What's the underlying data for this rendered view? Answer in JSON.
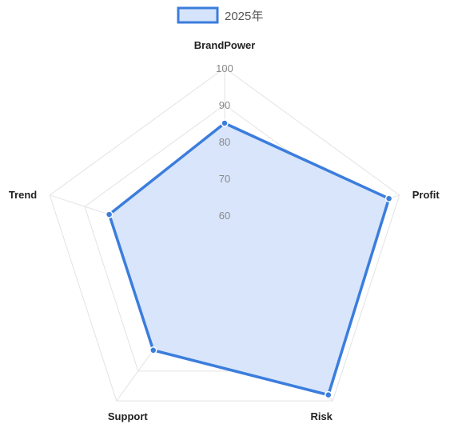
{
  "chart_data": {
    "type": "radar",
    "axes": [
      "BrandPower",
      "Profit",
      "Risk",
      "Support",
      "Trend"
    ],
    "series": [
      {
        "name": "2025年",
        "values": [
          85,
          97,
          98,
          83,
          83
        ],
        "color": "#3b7ddd",
        "fill": "#d6e4fb"
      }
    ],
    "r_min": 50,
    "r_max": 100,
    "ticks": [
      60,
      70,
      80,
      90,
      100
    ],
    "tick_labels": [
      "60",
      "70",
      "80",
      "90",
      "100"
    ],
    "grid": true,
    "legend_position": "top-center",
    "grid_color": "#e3e3e3"
  }
}
